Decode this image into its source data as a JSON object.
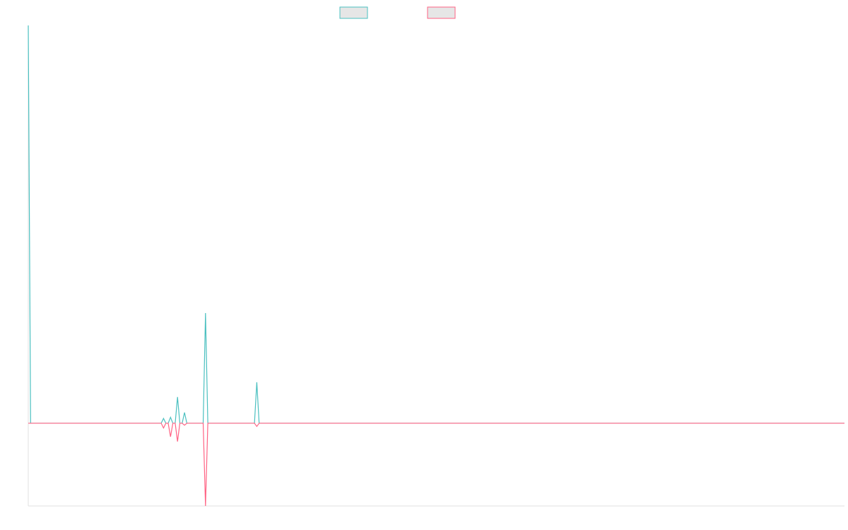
{
  "chart_data": {
    "type": "line",
    "x": [
      0,
      1,
      57,
      58,
      59,
      60,
      61,
      62,
      63,
      64,
      65,
      66,
      67,
      68,
      75,
      76,
      77,
      97,
      98,
      99,
      350
    ],
    "series": [
      {
        "color": "#4bc0c0",
        "values": [
          100,
          0,
          0,
          1.2,
          0,
          0,
          1.5,
          0,
          0,
          6.6,
          0,
          0,
          2.7,
          0,
          0,
          27.7,
          0,
          0,
          10.3,
          0,
          0
        ]
      },
      {
        "color": "#ff6384",
        "values": [
          0,
          0,
          0,
          -1.2,
          0,
          0,
          -3.4,
          0,
          0,
          -4.6,
          0,
          0,
          -0.5,
          0,
          0,
          -20.8,
          0,
          0,
          -0.8,
          0,
          0
        ]
      }
    ],
    "xlim": [
      0,
      350
    ],
    "ylim": [
      -20.8,
      100
    ]
  }
}
